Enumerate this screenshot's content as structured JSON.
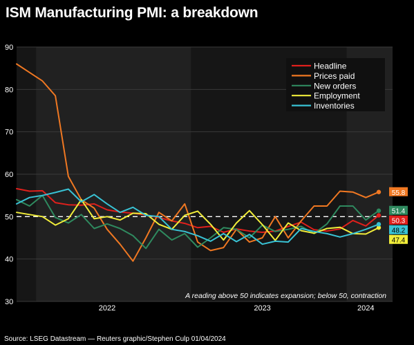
{
  "page": {
    "title": "ISM Manufacturing PMI: a breakdown",
    "source": "Source: LSEG Datastream — Reuters graphic/Stephen Culp 01/04/2024"
  },
  "colors": {
    "background": "#000000",
    "plot_dark": "#161616",
    "plot_light": "#212121",
    "gridline": "#3a3a3a",
    "reference_line": "#ffffff"
  },
  "chart_data": {
    "type": "line",
    "title": "ISM Manufacturing PMI: a breakdown",
    "xlabel": "",
    "ylabel": "",
    "ylim": [
      30,
      90
    ],
    "yticks": [
      30,
      40,
      50,
      60,
      70,
      80,
      90
    ],
    "grid": true,
    "legend_position": "top-right",
    "x": [
      "2021-11",
      "2021-12",
      "2022-01",
      "2022-02",
      "2022-03",
      "2022-04",
      "2022-05",
      "2022-06",
      "2022-07",
      "2022-08",
      "2022-09",
      "2022-10",
      "2022-11",
      "2022-12",
      "2023-01",
      "2023-02",
      "2023-03",
      "2023-04",
      "2023-05",
      "2023-06",
      "2023-07",
      "2023-08",
      "2023-09",
      "2023-10",
      "2023-11",
      "2023-12",
      "2024-01",
      "2024-02",
      "2024-03"
    ],
    "x_tick_labels": [
      {
        "label": "2022",
        "at": "2022-06"
      },
      {
        "label": "2023",
        "at": "2023-06"
      },
      {
        "label": "2024",
        "at": "2024-02"
      }
    ],
    "shaded_years": [
      "2022",
      "2024"
    ],
    "reference_line": {
      "y": 50,
      "style": "dashed"
    },
    "annotation": "A reading above 50 indicates expansion; below 50, contraction",
    "series": [
      {
        "name": "Headline",
        "color": "#e0201c",
        "last_label": "50.3",
        "values": [
          56.6,
          56.0,
          56.1,
          53.3,
          52.8,
          52.7,
          53.0,
          51.6,
          51.1,
          50.8,
          50.4,
          49.8,
          49.0,
          48.4,
          47.4,
          47.7,
          46.3,
          47.1,
          46.6,
          46.3,
          46.6,
          47.7,
          48.7,
          46.9,
          46.6,
          47.1,
          49.1,
          47.8,
          50.3
        ]
      },
      {
        "name": "Prices paid",
        "color": "#f07822",
        "last_label": "55.8",
        "values": [
          86.0,
          84.0,
          82.0,
          78.5,
          59.5,
          54.0,
          52.0,
          47.0,
          43.5,
          39.5,
          45.0,
          51.0,
          49.0,
          53.0,
          44.0,
          42.0,
          42.7,
          47.0,
          44.0,
          45.0,
          50.0,
          45.0,
          49.0,
          52.5,
          52.5,
          56.0,
          55.8,
          54.5,
          55.8
        ]
      },
      {
        "name": "New orders",
        "color": "#2f8a5f",
        "last_label": "51.4",
        "values": [
          54.0,
          52.5,
          55.0,
          49.8,
          48.5,
          50.5,
          47.2,
          48.3,
          47.2,
          45.5,
          42.5,
          47.0,
          44.5,
          46.0,
          42.8,
          45.0,
          47.4,
          47.0,
          45.0,
          48.0,
          46.5,
          47.0,
          47.7,
          46.0,
          48.3,
          52.5,
          52.5,
          49.2,
          51.4
        ]
      },
      {
        "name": "Employment",
        "color": "#f2ee3a",
        "last_label": "47.4",
        "values": [
          51.0,
          50.5,
          50.0,
          48.0,
          49.5,
          54.0,
          49.5,
          50.0,
          49.2,
          50.8,
          50.7,
          48.2,
          47.0,
          50.3,
          51.3,
          48.2,
          44.5,
          48.5,
          51.4,
          48.1,
          44.4,
          48.5,
          46.7,
          46.1,
          47.2,
          47.5,
          46.0,
          45.9,
          47.4
        ]
      },
      {
        "name": "Inventories",
        "color": "#39c3d5",
        "last_label": "48.2",
        "values": [
          53.0,
          54.5,
          55.0,
          55.7,
          56.5,
          53.5,
          55.2,
          53.0,
          51.0,
          52.2,
          50.3,
          50.0,
          47.0,
          46.5,
          45.5,
          44.2,
          46.0,
          44.1,
          45.8,
          43.5,
          44.2,
          44.0,
          47.2,
          46.5,
          46.0,
          45.2,
          46.0,
          47.0,
          48.2
        ]
      }
    ]
  }
}
